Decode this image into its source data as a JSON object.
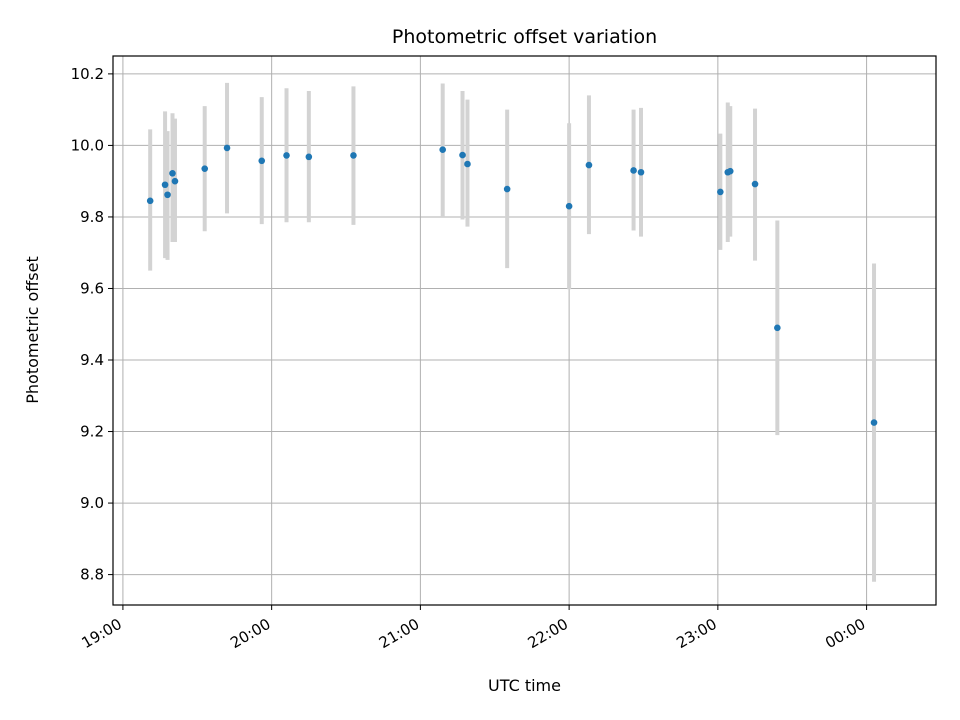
{
  "chart_data": {
    "type": "scatter",
    "title": "Photometric offset variation",
    "xlabel": "UTC time",
    "ylabel": "Photometric offset",
    "grid": true,
    "x_unit": "UTC time (HH:MM)",
    "xlim": [
      "18:56",
      "00:28"
    ],
    "ylim": [
      8.715,
      10.25
    ],
    "x_ticks": [
      "19:00",
      "20:00",
      "21:00",
      "22:00",
      "23:00",
      "00:00"
    ],
    "y_ticks": [
      8.8,
      9.0,
      9.2,
      9.4,
      9.6,
      9.8,
      10.0,
      10.2
    ],
    "y_tick_labels": [
      "8.8",
      "9.0",
      "9.2",
      "9.4",
      "9.6",
      "9.8",
      "10.0",
      "10.2"
    ],
    "marker_color": "#1f77b4",
    "errorbar_color": "#d3d3d3",
    "points": [
      {
        "t": "19:11",
        "y": 9.845,
        "low": 9.65,
        "high": 10.045
      },
      {
        "t": "19:17",
        "y": 9.89,
        "low": 9.685,
        "high": 10.095
      },
      {
        "t": "19:18",
        "y": 9.862,
        "low": 9.68,
        "high": 10.04
      },
      {
        "t": "19:20",
        "y": 9.922,
        "low": 9.73,
        "high": 10.09
      },
      {
        "t": "19:21",
        "y": 9.9,
        "low": 9.73,
        "high": 10.075
      },
      {
        "t": "19:33",
        "y": 9.935,
        "low": 9.76,
        "high": 10.11
      },
      {
        "t": "19:42",
        "y": 9.993,
        "low": 9.81,
        "high": 10.175
      },
      {
        "t": "19:56",
        "y": 9.957,
        "low": 9.78,
        "high": 10.135
      },
      {
        "t": "20:06",
        "y": 9.972,
        "low": 9.785,
        "high": 10.16
      },
      {
        "t": "20:15",
        "y": 9.968,
        "low": 9.785,
        "high": 10.152
      },
      {
        "t": "20:33",
        "y": 9.972,
        "low": 9.778,
        "high": 10.165
      },
      {
        "t": "21:09",
        "y": 9.988,
        "low": 9.8,
        "high": 10.173
      },
      {
        "t": "21:17",
        "y": 9.973,
        "low": 9.793,
        "high": 10.152
      },
      {
        "t": "21:19",
        "y": 9.948,
        "low": 9.773,
        "high": 10.128
      },
      {
        "t": "21:35",
        "y": 9.878,
        "low": 9.657,
        "high": 10.1
      },
      {
        "t": "22:00",
        "y": 9.83,
        "low": 9.598,
        "high": 10.062
      },
      {
        "t": "22:08",
        "y": 9.945,
        "low": 9.752,
        "high": 10.14
      },
      {
        "t": "22:26",
        "y": 9.93,
        "low": 9.762,
        "high": 10.1
      },
      {
        "t": "22:29",
        "y": 9.925,
        "low": 9.745,
        "high": 10.105
      },
      {
        "t": "23:01",
        "y": 9.87,
        "low": 9.708,
        "high": 10.033
      },
      {
        "t": "23:04",
        "y": 9.925,
        "low": 9.73,
        "high": 10.12
      },
      {
        "t": "23:05",
        "y": 9.928,
        "low": 9.745,
        "high": 10.11
      },
      {
        "t": "23:15",
        "y": 9.892,
        "low": 9.678,
        "high": 10.103
      },
      {
        "t": "23:24",
        "y": 9.49,
        "low": 9.19,
        "high": 9.79
      },
      {
        "t": "00:03",
        "y": 9.225,
        "low": 8.78,
        "high": 9.67
      }
    ]
  }
}
